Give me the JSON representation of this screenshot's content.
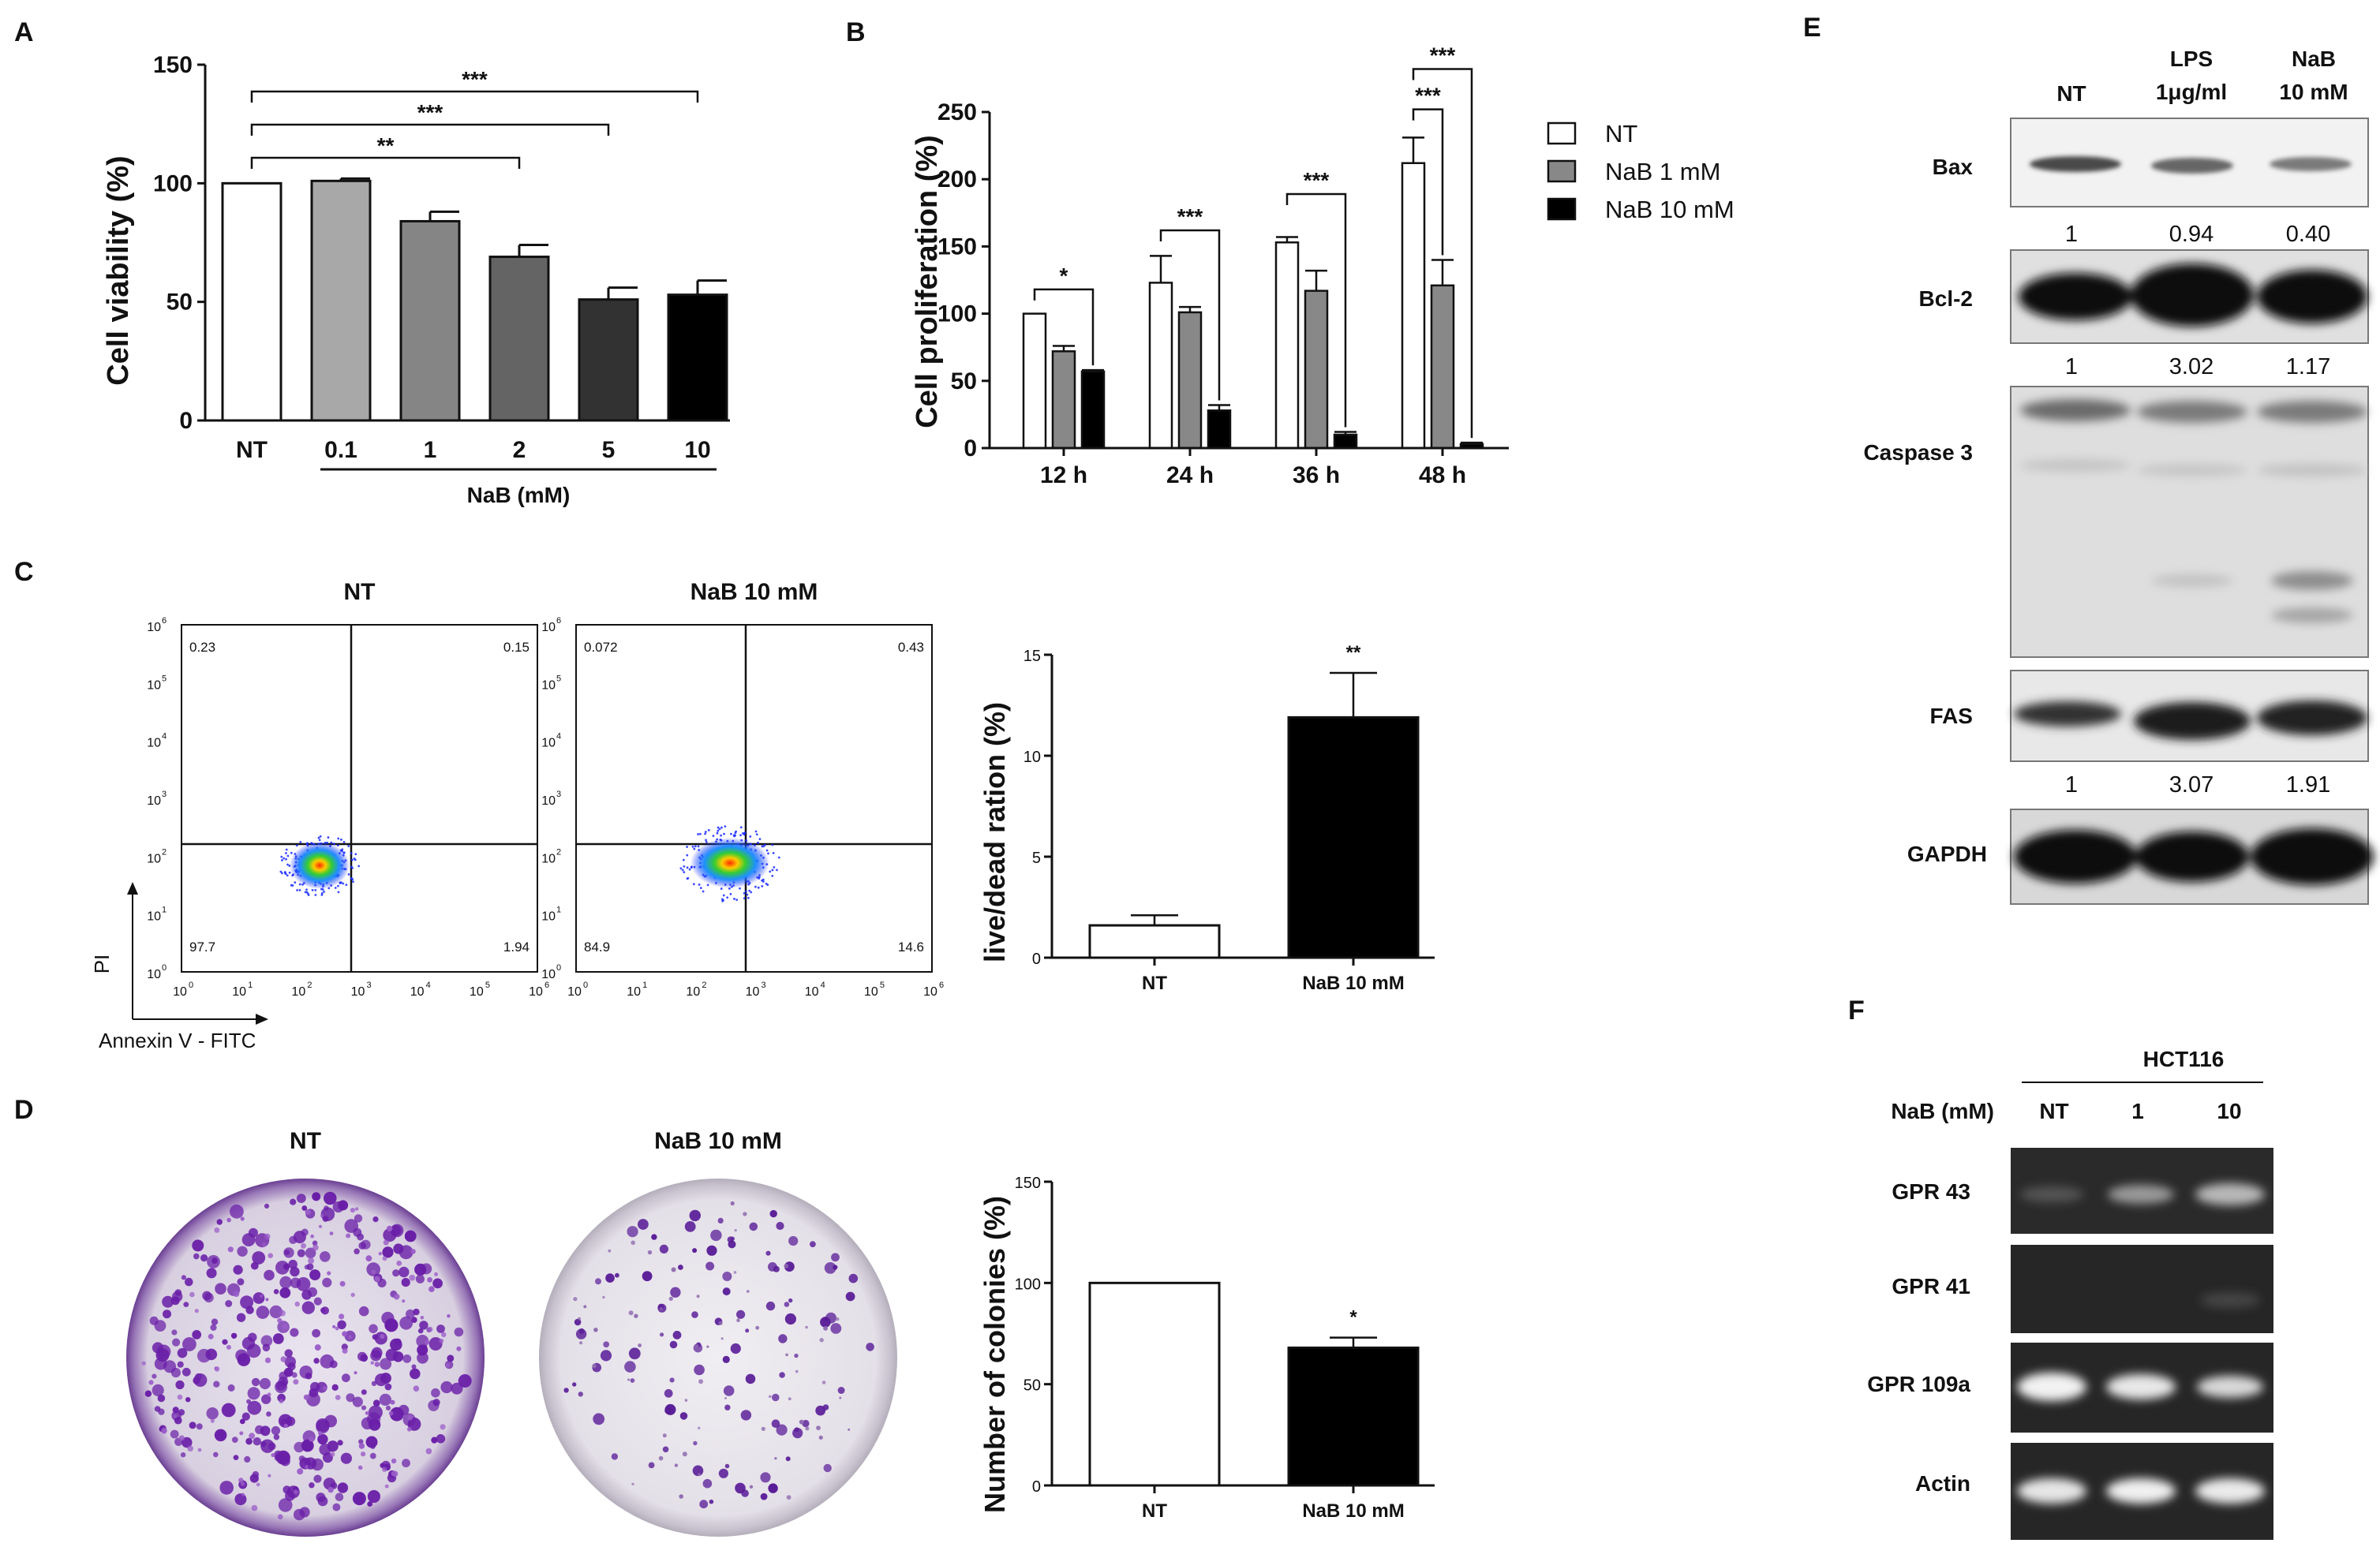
{
  "panel_letters": {
    "a": "A",
    "b": "B",
    "c": "C",
    "d": "D",
    "e": "E",
    "f": "F"
  },
  "chart_data": [
    {
      "id": "A",
      "type": "bar",
      "title": "",
      "ylabel": "Cell viability (%)",
      "xlabel": "NaB (mM)",
      "categories": [
        "NT",
        "0.1",
        "1",
        "2",
        "5",
        "10"
      ],
      "values": [
        100,
        101,
        84,
        69,
        51,
        53
      ],
      "errors": [
        0,
        1,
        4,
        5,
        5,
        6
      ],
      "colors": [
        "#ffffff",
        "#a8a8a8",
        "#858585",
        "#646464",
        "#323232",
        "#000000"
      ],
      "ylim": [
        0,
        150
      ],
      "yticks": [
        0,
        50,
        100,
        150
      ],
      "significance": [
        {
          "from": "NT",
          "to": "2",
          "label": "**"
        },
        {
          "from": "NT",
          "to": "5",
          "label": "***"
        },
        {
          "from": "NT",
          "to": "10",
          "label": "***"
        }
      ]
    },
    {
      "id": "B",
      "type": "bar",
      "ylabel": "Cell proliferation (%)",
      "categories": [
        "12 h",
        "24 h",
        "36 h",
        "48 h"
      ],
      "series": [
        {
          "name": "NT",
          "values": [
            100,
            123,
            153,
            212
          ],
          "errors": [
            0,
            20,
            4,
            19
          ],
          "color": "#ffffff"
        },
        {
          "name": "NaB 1 mM",
          "values": [
            72,
            101,
            117,
            121
          ],
          "errors": [
            4,
            4,
            15,
            19
          ],
          "color": "#888888"
        },
        {
          "name": "NaB 10 mM",
          "values": [
            57,
            28,
            10,
            3
          ],
          "errors": [
            1,
            4,
            2,
            1
          ],
          "color": "#000000"
        }
      ],
      "ylim": [
        0,
        250
      ],
      "yticks": [
        0,
        50,
        100,
        150,
        200,
        250
      ],
      "significance": [
        {
          "group": "12 h",
          "label": "*"
        },
        {
          "group": "24 h",
          "label": "***"
        },
        {
          "group": "36 h",
          "label": "***"
        },
        {
          "group": "48 h",
          "label": "***",
          "between": "NT-NaB 1 mM"
        },
        {
          "group": "48 h",
          "label": "***",
          "between": "NT-NaB 10 mM"
        }
      ]
    },
    {
      "id": "C-flow",
      "type": "scatter",
      "xlabel": "Annexin V - FITC",
      "ylabel": "PI",
      "log_ticks": [
        "10",
        "10",
        "10",
        "10",
        "10",
        "10",
        "10"
      ],
      "log_exps": [
        "0",
        "1",
        "2",
        "3",
        "4",
        "5",
        "6"
      ],
      "plots": [
        {
          "title": "NT",
          "quadrants": {
            "ul": "0.23",
            "ur": "0.15",
            "ll": "97.7",
            "lr": "1.94"
          }
        },
        {
          "title": "NaB 10 mM",
          "quadrants": {
            "ul": "0.072",
            "ur": "0.43",
            "ll": "84.9",
            "lr": "14.6"
          }
        }
      ]
    },
    {
      "id": "C-bar",
      "type": "bar",
      "ylabel": "live/dead ration (%)",
      "categories": [
        "NT",
        "NaB 10 mM"
      ],
      "values": [
        1.6,
        11.9
      ],
      "errors": [
        0.5,
        2.2
      ],
      "colors": [
        "#ffffff",
        "#000000"
      ],
      "ylim": [
        0,
        15
      ],
      "yticks": [
        0,
        5,
        10,
        15
      ],
      "significance": [
        {
          "category": "NaB 10 mM",
          "label": "**"
        }
      ]
    },
    {
      "id": "D-bar",
      "type": "bar",
      "ylabel": "Number of colonies (%)",
      "categories": [
        "NT",
        "NaB 10 mM"
      ],
      "values": [
        100,
        68
      ],
      "errors": [
        0,
        5
      ],
      "colors": [
        "#ffffff",
        "#000000"
      ],
      "ylim": [
        0,
        150
      ],
      "yticks": [
        0,
        50,
        100,
        150
      ],
      "significance": [
        {
          "category": "NaB 10 mM",
          "label": "*"
        }
      ]
    }
  ],
  "colony": {
    "titles": [
      "NT",
      "NaB 10 mM"
    ]
  },
  "western": {
    "lanes": [
      "NT",
      "LPS",
      "NaB"
    ],
    "lanes2": [
      "",
      "1μg/ml",
      "10 mM"
    ],
    "bands": [
      "Bax",
      "Bcl-2",
      "Caspase 3",
      "FAS",
      "GAPDH"
    ],
    "quant": {
      "bax": [
        "1",
        "0.94",
        "0.40"
      ],
      "bcl2": [
        "1",
        "3.02",
        "1.17"
      ],
      "fas": [
        "1",
        "3.07",
        "1.91"
      ]
    }
  },
  "pcr": {
    "cell_line": "HCT116",
    "dose_label": "NaB (mM)",
    "lanes": [
      "NT",
      "1",
      "10"
    ],
    "bands": [
      "GPR 43",
      "GPR 41",
      "GPR 109a",
      "Actin"
    ]
  }
}
